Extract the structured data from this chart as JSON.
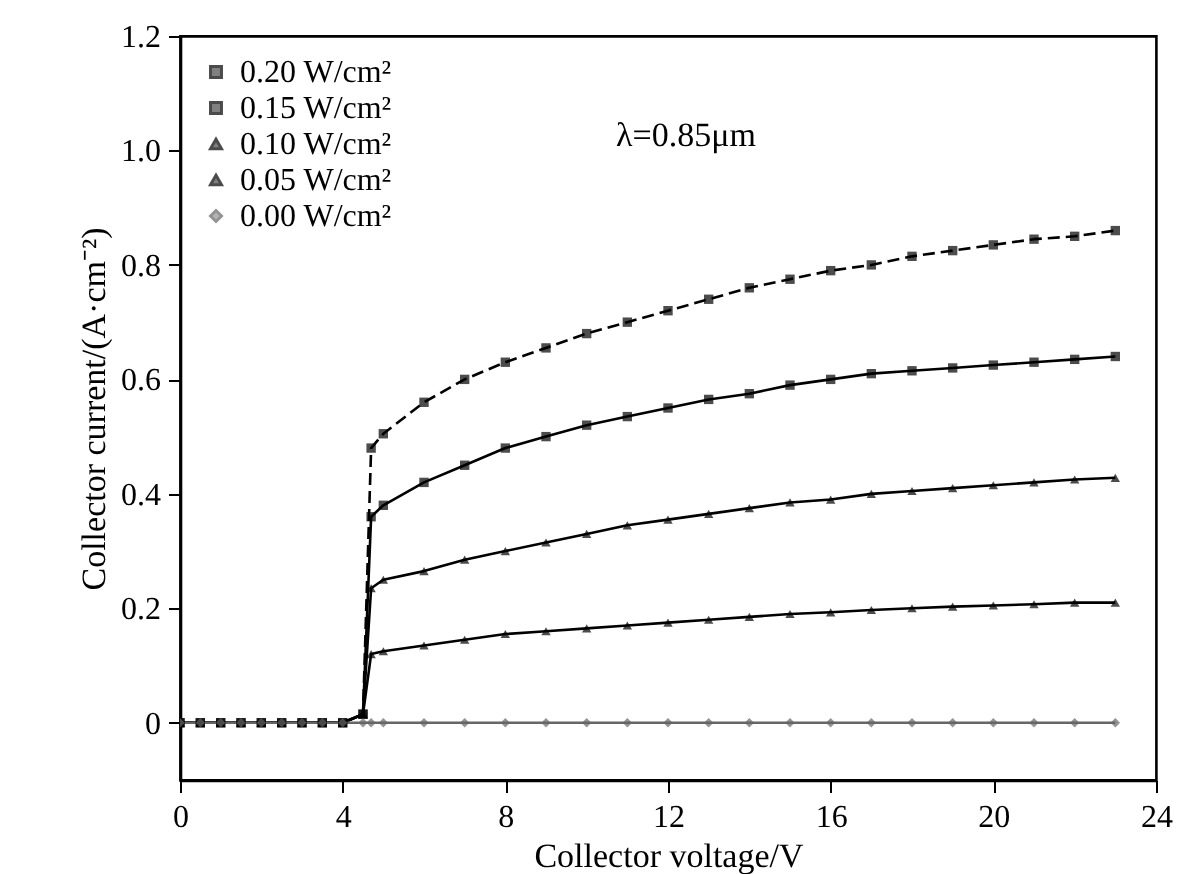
{
  "chart_data": {
    "type": "line",
    "xlabel": "Collector voltage/V",
    "ylabel": "Collector current/(A·cm⁻²)",
    "annotations": [
      "λ=0.85μm"
    ],
    "x": [
      0,
      0.5,
      1,
      1.5,
      2,
      2.5,
      3,
      3.5,
      4,
      4.5,
      4.7,
      5,
      6,
      7,
      8,
      9,
      10,
      11,
      12,
      13,
      14,
      15,
      16,
      17,
      18,
      19,
      20,
      21,
      22,
      23
    ],
    "series": [
      {
        "name": "0.20 W/cm²",
        "color": "#000000",
        "marker": "square",
        "line_style": "dashed",
        "values": [
          0,
          0,
          0,
          0,
          0,
          0,
          0,
          0,
          0,
          0.015,
          0.48,
          0.505,
          0.56,
          0.6,
          0.63,
          0.655,
          0.68,
          0.7,
          0.72,
          0.74,
          0.76,
          0.775,
          0.79,
          0.8,
          0.815,
          0.825,
          0.835,
          0.845,
          0.85,
          0.86
        ]
      },
      {
        "name": "0.15 W/cm²",
        "color": "#000000",
        "marker": "square",
        "line_style": "solid",
        "values": [
          0,
          0,
          0,
          0,
          0,
          0,
          0,
          0,
          0,
          0.015,
          0.36,
          0.38,
          0.42,
          0.45,
          0.48,
          0.5,
          0.52,
          0.535,
          0.55,
          0.565,
          0.575,
          0.59,
          0.6,
          0.61,
          0.615,
          0.62,
          0.625,
          0.63,
          0.635,
          0.64
        ]
      },
      {
        "name": "0.10 W/cm²",
        "color": "#000000",
        "marker": "triangle",
        "line_style": "solid",
        "values": [
          0,
          0,
          0,
          0,
          0,
          0,
          0,
          0,
          0,
          0.015,
          0.235,
          0.25,
          0.265,
          0.285,
          0.3,
          0.315,
          0.33,
          0.345,
          0.355,
          0.365,
          0.375,
          0.385,
          0.39,
          0.4,
          0.405,
          0.41,
          0.415,
          0.42,
          0.425,
          0.428
        ]
      },
      {
        "name": "0.05 W/cm²",
        "color": "#000000",
        "marker": "triangle",
        "line_style": "solid",
        "values": [
          0,
          0,
          0,
          0,
          0,
          0,
          0,
          0,
          0,
          0.015,
          0.12,
          0.125,
          0.135,
          0.145,
          0.155,
          0.16,
          0.165,
          0.17,
          0.175,
          0.18,
          0.185,
          0.19,
          0.193,
          0.197,
          0.2,
          0.203,
          0.205,
          0.207,
          0.21,
          0.21
        ]
      },
      {
        "name": "0.00 W/cm²",
        "color": "#666666",
        "marker": "diamond",
        "line_style": "solid",
        "values": [
          0,
          0,
          0,
          0,
          0,
          0,
          0,
          0,
          0,
          0,
          0,
          0,
          0,
          0,
          0,
          0,
          0,
          0,
          0,
          0,
          0,
          0,
          0,
          0,
          0,
          0,
          0,
          0,
          0,
          0
        ]
      }
    ],
    "xlim": [
      0,
      24
    ],
    "xticks": [
      0,
      4,
      8,
      12,
      16,
      20,
      24
    ],
    "ylim": [
      -0.1,
      1.2
    ],
    "yticks": [
      {
        "value": 0,
        "label": "0"
      },
      0.2,
      0.4,
      0.6,
      0.8,
      {
        "value": 1,
        "label": "1.0"
      },
      1.2
    ],
    "legend": "top left",
    "grid": false
  }
}
